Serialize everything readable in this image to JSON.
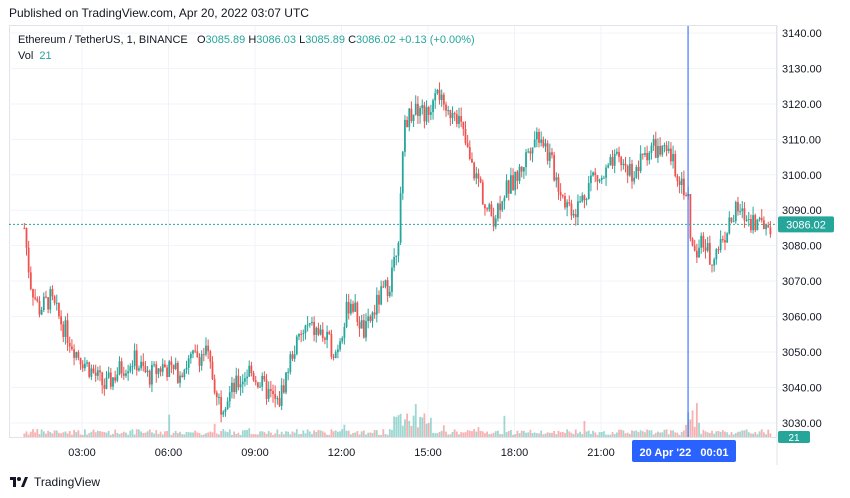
{
  "header": {
    "published": "Published on TradingView.com, Apr 20, 2022 03:07 UTC"
  },
  "legend": {
    "symbol": "Ethereum / TetherUS, 1, BINANCE",
    "o_label": "O",
    "o_value": "3085.89",
    "h_label": "H",
    "h_value": "3086.03",
    "l_label": "L",
    "l_value": "3085.89",
    "c_label": "C",
    "c_value": "3086.02",
    "change": "+0.13 (+0.00%)",
    "vol_label": "Vol",
    "vol_value": "21"
  },
  "colors": {
    "up": "#26a69a",
    "down": "#ef5350",
    "crosshair": "#2962ff",
    "price_line": "#26a69a",
    "grid": "#f0f3fa",
    "axis_text": "#131722"
  },
  "footer": {
    "brand": "TradingView",
    "logo_icon": "tradingview-logo-icon"
  },
  "chart_data": {
    "type": "candlestick",
    "title": "Ethereum / TetherUS, 1, BINANCE",
    "interval": "1 minute",
    "ylim": [
      3026,
      3142
    ],
    "y_ticks": [
      "3030.00",
      "3040.00",
      "3050.00",
      "3060.00",
      "3070.00",
      "3080.00",
      "3090.00",
      "3100.00",
      "3110.00",
      "3120.00",
      "3130.00",
      "3140.00"
    ],
    "x_ticks": [
      "03:00",
      "06:00",
      "09:00",
      "12:00",
      "15:00",
      "18:00",
      "21:00",
      "03:00"
    ],
    "crosshair_time_label": "20 Apr '22   00:01",
    "last_price_label": "3086.02",
    "volume_label": "21",
    "price_path_hours": [
      [
        1.0,
        3085
      ],
      [
        1.2,
        3070
      ],
      [
        1.5,
        3062
      ],
      [
        1.9,
        3065
      ],
      [
        2.3,
        3058
      ],
      [
        2.8,
        3050
      ],
      [
        3.3,
        3045
      ],
      [
        3.8,
        3040
      ],
      [
        4.3,
        3045
      ],
      [
        4.8,
        3048
      ],
      [
        5.3,
        3043
      ],
      [
        5.8,
        3046
      ],
      [
        6.3,
        3044
      ],
      [
        6.8,
        3048
      ],
      [
        7.3,
        3050
      ],
      [
        7.8,
        3035
      ],
      [
        8.3,
        3040
      ],
      [
        8.8,
        3045
      ],
      [
        9.3,
        3040
      ],
      [
        9.8,
        3035
      ],
      [
        10.3,
        3050
      ],
      [
        10.8,
        3057
      ],
      [
        11.3,
        3055
      ],
      [
        11.8,
        3050
      ],
      [
        12.3,
        3065
      ],
      [
        12.8,
        3055
      ],
      [
        13.3,
        3065
      ],
      [
        13.7,
        3070
      ],
      [
        14.0,
        3085
      ],
      [
        14.2,
        3115
      ],
      [
        14.6,
        3120
      ],
      [
        15.0,
        3116
      ],
      [
        15.3,
        3127
      ],
      [
        15.6,
        3115
      ],
      [
        15.9,
        3120
      ],
      [
        16.2,
        3112
      ],
      [
        16.5,
        3102
      ],
      [
        16.8,
        3098
      ],
      [
        17.0,
        3090
      ],
      [
        17.3,
        3088
      ],
      [
        17.6,
        3095
      ],
      [
        18.0,
        3098
      ],
      [
        18.3,
        3103
      ],
      [
        18.6,
        3110
      ],
      [
        18.9,
        3112
      ],
      [
        19.2,
        3105
      ],
      [
        19.5,
        3098
      ],
      [
        19.8,
        3092
      ],
      [
        20.1,
        3090
      ],
      [
        20.4,
        3094
      ],
      [
        20.7,
        3100
      ],
      [
        21.0,
        3098
      ],
      [
        21.3,
        3102
      ],
      [
        21.6,
        3104
      ],
      [
        21.9,
        3102
      ],
      [
        22.2,
        3100
      ],
      [
        22.5,
        3106
      ],
      [
        22.8,
        3108
      ],
      [
        23.1,
        3106
      ],
      [
        23.4,
        3105
      ],
      [
        23.7,
        3100
      ],
      [
        24.0,
        3094
      ],
      [
        24.2,
        3075
      ],
      [
        24.5,
        3082
      ],
      [
        24.8,
        3076
      ],
      [
        25.1,
        3080
      ],
      [
        25.4,
        3085
      ],
      [
        25.7,
        3090
      ],
      [
        26.0,
        3088
      ],
      [
        26.3,
        3087
      ],
      [
        26.6,
        3086
      ],
      [
        26.9,
        3086
      ]
    ]
  }
}
